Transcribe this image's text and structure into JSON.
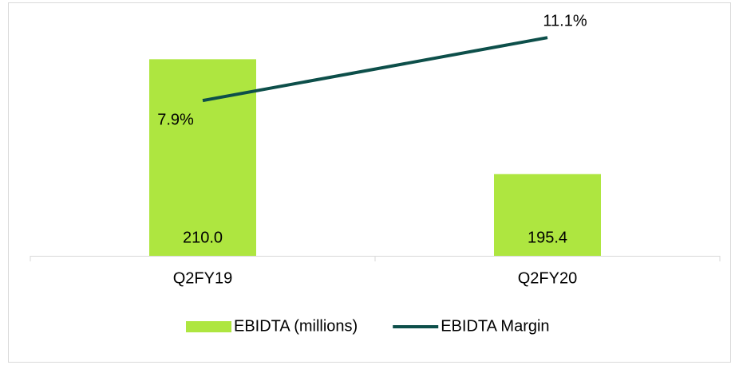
{
  "chart_data": {
    "type": "bar",
    "categories": [
      "Q2FY19",
      "Q2FY20"
    ],
    "series": [
      {
        "name": "EBIDTA (millions)",
        "type": "bar",
        "color": "#aee640",
        "values": [
          210.0,
          195.4
        ],
        "value_labels": [
          "210.0",
          "195.4"
        ]
      },
      {
        "name": "EBIDTA Margin",
        "type": "line",
        "axis": "y2",
        "color": "#0d4f4a",
        "values": [
          7.9,
          11.1
        ],
        "value_labels": [
          "7.9%",
          "11.1%"
        ]
      }
    ],
    "ylim": [
      185,
      215
    ],
    "y2lim": [
      0,
      12
    ],
    "legend": "bottom"
  }
}
